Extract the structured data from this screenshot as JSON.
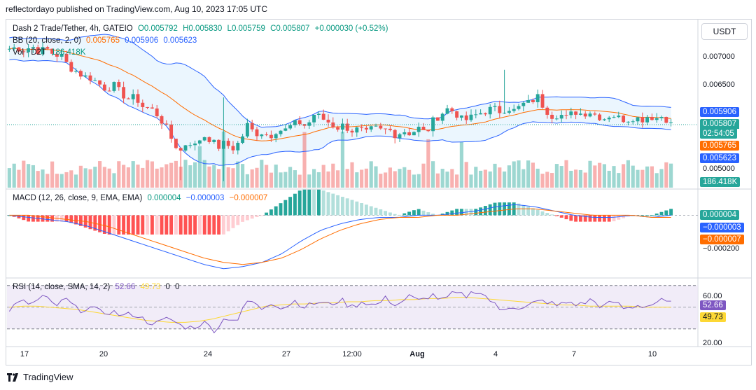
{
  "publisher": "reflectordayo published on TradingView.com, Aug 10, 2023 17:05 UTC",
  "currency_button": "USDT",
  "brand": "TradingView",
  "legend": {
    "title": "Dash 2 Trade/Tether, 4h, GATEIO",
    "ohlc": [
      "O0.005792",
      "H0.005830",
      "L0.005759",
      "C0.005807",
      "+0.000030 (+0.52%)"
    ],
    "bb": "BB (20, close, 2, 0)",
    "bb_values": [
      "0.005765",
      "0.005906",
      "0.005623"
    ],
    "vol": "Vol · D2T",
    "vol_value": "186.418K",
    "macd": "MACD (12, 26, close, 9, EMA, EMA)",
    "macd_values": [
      "0.000004",
      "−0.000003",
      "−0.000007"
    ],
    "rsi": "RSI (14, close, SMA, 14, 2)",
    "rsi_values": [
      "52.66",
      "49.73",
      "0",
      "0"
    ]
  },
  "price_axis": {
    "ticks": [
      "0.007000",
      "0.006500",
      "0.005000"
    ],
    "tags": {
      "bb_upper": "0.005906",
      "last": "0.005807",
      "countdown": "02:54:05",
      "bb_basis": "0.005765",
      "bb_lower": "0.005623",
      "volume": "186.418K"
    }
  },
  "macd_axis": {
    "ticks": [
      "−0.000200"
    ],
    "tags": {
      "histogram": "0.000004",
      "macd": "−0.000003",
      "signal": "−0.000007"
    }
  },
  "rsi_axis": {
    "ticks": [
      "60.00",
      "20.00"
    ],
    "tags": {
      "rsi": "52.66",
      "rsi_ma": "49.73"
    }
  },
  "time_axis": [
    "17",
    "20",
    "24",
    "27",
    "12:00",
    "Aug",
    "4",
    "7",
    "10"
  ],
  "colors": {
    "up": "#26a69a",
    "down": "#ef5350",
    "bb_line": "#2962ff",
    "bb_basis": "#ff6d00",
    "bb_fill": "#e3f2fd",
    "macd": "#2962ff",
    "signal": "#ff6d00",
    "rsi": "#7e57c2",
    "rsi_ma": "#fdd835",
    "rsi_band": "#ede7f6"
  },
  "chart_data": [
    {
      "type": "candlestick",
      "title": "Dash 2 Trade/Tether, 4h, GATEIO",
      "ylim": [
        0.0049,
        0.0073
      ],
      "x_ticks": [
        "17",
        "20",
        "24",
        "27",
        "12:00",
        "Aug",
        "4",
        "7",
        "10"
      ],
      "close_path": [
        0.0069,
        0.00692,
        0.00688,
        0.00694,
        0.00686,
        0.0069,
        0.00682,
        0.0068,
        0.00664,
        0.00658,
        0.0065,
        0.00648,
        0.0064,
        0.00632,
        0.00638,
        0.00626,
        0.00618,
        0.0062,
        0.00606,
        0.00604,
        0.00594,
        0.00578,
        0.00556,
        0.00542,
        0.00558,
        0.0055,
        0.00566,
        0.0056,
        0.00548,
        0.00554,
        0.00546,
        0.00556,
        0.0058,
        0.00568,
        0.0057,
        0.00564,
        0.00574,
        0.00572,
        0.0058,
        0.00584,
        0.00578,
        0.00596,
        0.0059,
        0.00584,
        0.00576,
        0.0058,
        0.00572,
        0.00574,
        0.00568,
        0.00576,
        0.00572,
        0.00574,
        0.00566,
        0.00572,
        0.00568,
        0.00576,
        0.00568,
        0.00586,
        0.00596,
        0.00604,
        0.00598,
        0.00586,
        0.0059,
        0.00596,
        0.006,
        0.00604,
        0.006,
        0.00606,
        0.006,
        0.0061,
        0.00612,
        0.00622,
        0.00604,
        0.00594,
        0.00596,
        0.0059,
        0.006,
        0.00596,
        0.006,
        0.00594,
        0.0059,
        0.00596,
        0.0059,
        0.00588,
        0.00592,
        0.00588,
        0.00594,
        0.0059,
        0.00594,
        0.00581
      ],
      "bb": {
        "basis": 0.005765,
        "upper": 0.005906,
        "lower": 0.005623
      },
      "last": {
        "open": 0.005792,
        "high": 0.00583,
        "low": 0.005759,
        "close": 0.005807,
        "change": "+0.000030 (+0.52%)"
      }
    },
    {
      "type": "bar",
      "title": "Vol · D2T",
      "last_value": "186.418K"
    },
    {
      "type": "line",
      "title": "MACD (12, 26, close, 9, EMA, EMA)",
      "ylim": [
        -0.00028,
        8e-05
      ],
      "macd_path": [
        0.0,
        -1e-05,
        -2e-05,
        -3e-05,
        -5e-05,
        -8e-05,
        -0.00011,
        -0.00014,
        -0.00017,
        -0.0002,
        -0.00023,
        -0.00025,
        -0.00024,
        -0.00022,
        -0.00018,
        -0.00012,
        -7e-05,
        -4e-05,
        -2e-05,
        -1e-05,
        -1e-05,
        0.0,
        0.0,
        1e-05,
        2e-05,
        4e-05,
        5e-05,
        4e-05,
        2e-05,
        0.0,
        -1e-05,
        -1e-05,
        0.0,
        -1e-05,
        0.0
      ],
      "signal_path": [
        0.0,
        0.0,
        -1e-05,
        -2e-05,
        -3e-05,
        -5e-05,
        -8e-05,
        -0.00011,
        -0.00014,
        -0.00017,
        -0.0002,
        -0.00022,
        -0.00023,
        -0.00022,
        -0.0002,
        -0.00016,
        -0.00011,
        -7e-05,
        -4e-05,
        -2e-05,
        -1e-05,
        -1e-05,
        0.0,
        0.0,
        1e-05,
        2e-05,
        3e-05,
        3e-05,
        2e-05,
        1e-05,
        0.0,
        0.0,
        0.0,
        -1e-05,
        -1e-05
      ],
      "last": {
        "histogram": 4e-06,
        "macd": -3e-06,
        "signal": -7e-06
      }
    },
    {
      "type": "line",
      "title": "RSI (14, close, SMA, 14, 2)",
      "ylim": [
        15,
        75
      ],
      "bands": [
        70,
        30
      ],
      "middle": 50,
      "rsi_path": [
        48,
        55,
        53,
        60,
        51,
        57,
        47,
        50,
        45,
        46,
        42,
        44,
        37,
        35,
        40,
        33,
        31,
        36,
        29,
        41,
        38,
        58,
        48,
        55,
        49,
        56,
        50,
        55,
        52,
        57,
        50,
        56,
        51,
        58,
        52,
        60,
        55,
        62,
        56,
        63,
        60,
        66,
        58,
        47,
        52,
        48,
        54,
        56,
        51,
        55,
        52,
        57,
        50,
        55,
        48,
        52,
        51,
        56,
        53
      ],
      "rsi_ma_path": [
        50,
        51,
        51,
        50,
        49,
        48,
        46,
        44,
        42,
        40,
        38,
        37,
        36,
        36,
        37,
        39,
        42,
        45,
        48,
        51,
        52,
        53,
        53,
        54,
        54,
        55,
        55,
        56,
        56,
        57,
        57,
        58,
        58,
        59,
        59,
        58,
        57,
        56,
        55,
        54,
        53,
        52,
        52,
        51,
        51,
        51,
        51,
        50,
        50,
        50
      ],
      "last": {
        "rsi": 52.66,
        "rsi_ma": 49.73
      }
    }
  ]
}
